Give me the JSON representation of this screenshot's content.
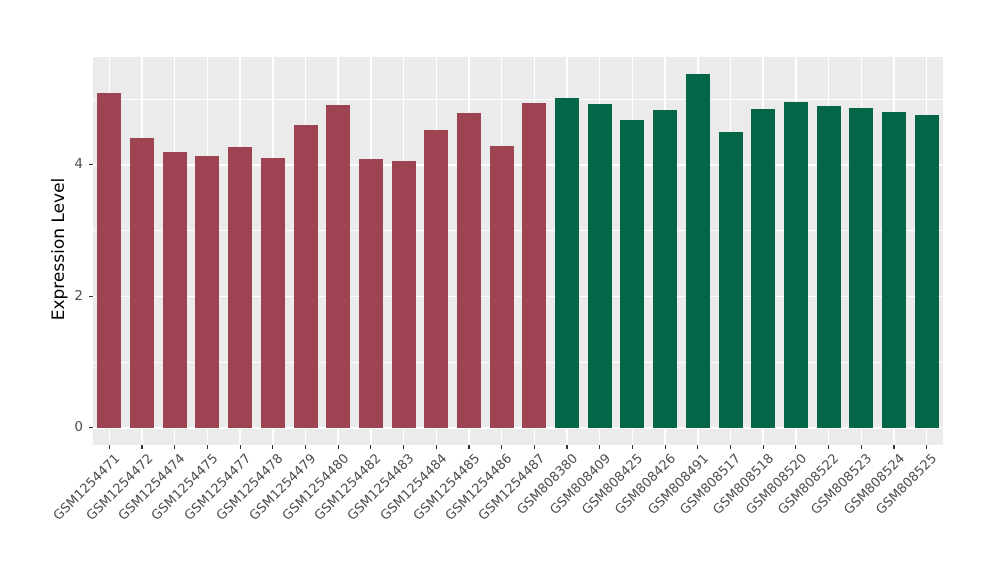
{
  "figure": {
    "background": "#FFFFFF",
    "panel_background": "#EBEBEB",
    "grid_color": "#FFFFFF",
    "tick_color": "#333333",
    "axis_text_color": "#4D4D4D",
    "axis_title_color": "#000000",
    "group_colors": {
      "GSM1254xxx_samples": "#9E4352",
      "GSM808xxx_samples": "#046649"
    }
  },
  "chart_data": {
    "type": "bar",
    "title": "",
    "xlabel": "",
    "ylabel": "Expression Level",
    "legend": "none",
    "grid": true,
    "ylim": [
      -0.26,
      5.64
    ],
    "yticks": [
      0,
      2,
      4
    ],
    "yticks_minor": [
      1,
      3,
      5
    ],
    "bars": [
      {
        "label": "GSM1254471",
        "value": 5.1,
        "color": "#9E4352"
      },
      {
        "label": "GSM1254472",
        "value": 4.41,
        "color": "#9E4352"
      },
      {
        "label": "GSM1254474",
        "value": 4.2,
        "color": "#9E4352"
      },
      {
        "label": "GSM1254475",
        "value": 4.14,
        "color": "#9E4352"
      },
      {
        "label": "GSM1254477",
        "value": 4.27,
        "color": "#9E4352"
      },
      {
        "label": "GSM1254478",
        "value": 4.1,
        "color": "#9E4352"
      },
      {
        "label": "GSM1254479",
        "value": 4.6,
        "color": "#9E4352"
      },
      {
        "label": "GSM1254480",
        "value": 4.91,
        "color": "#9E4352"
      },
      {
        "label": "GSM1254482",
        "value": 4.09,
        "color": "#9E4352"
      },
      {
        "label": "GSM1254483",
        "value": 4.06,
        "color": "#9E4352"
      },
      {
        "label": "GSM1254484",
        "value": 4.53,
        "color": "#9E4352"
      },
      {
        "label": "GSM1254485",
        "value": 4.79,
        "color": "#9E4352"
      },
      {
        "label": "GSM1254486",
        "value": 4.29,
        "color": "#9E4352"
      },
      {
        "label": "GSM1254487",
        "value": 4.94,
        "color": "#9E4352"
      },
      {
        "label": "GSM808380",
        "value": 5.02,
        "color": "#046649"
      },
      {
        "label": "GSM808409",
        "value": 4.92,
        "color": "#046649"
      },
      {
        "label": "GSM808425",
        "value": 4.68,
        "color": "#046649"
      },
      {
        "label": "GSM808426",
        "value": 4.84,
        "color": "#046649"
      },
      {
        "label": "GSM808491",
        "value": 5.38,
        "color": "#046649"
      },
      {
        "label": "GSM808517",
        "value": 4.5,
        "color": "#046649"
      },
      {
        "label": "GSM808518",
        "value": 4.85,
        "color": "#046649"
      },
      {
        "label": "GSM808520",
        "value": 4.96,
        "color": "#046649"
      },
      {
        "label": "GSM808522",
        "value": 4.9,
        "color": "#046649"
      },
      {
        "label": "GSM808523",
        "value": 4.87,
        "color": "#046649"
      },
      {
        "label": "GSM808524",
        "value": 4.81,
        "color": "#046649"
      },
      {
        "label": "GSM808525",
        "value": 4.76,
        "color": "#046649"
      }
    ]
  }
}
